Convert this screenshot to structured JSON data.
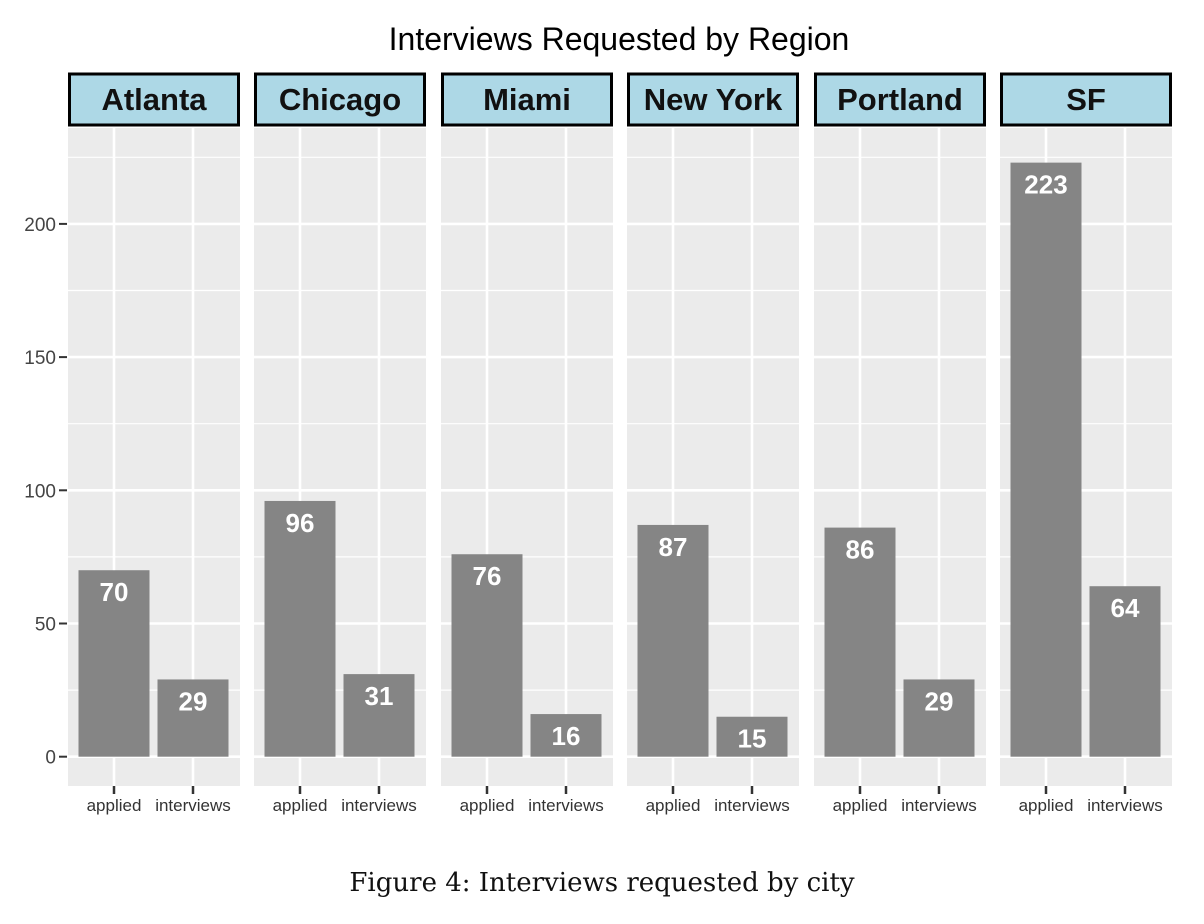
{
  "chart_data": {
    "type": "bar",
    "title": "Interviews Requested by Region",
    "facets": [
      "Atlanta",
      "Chicago",
      "Miami",
      "New York",
      "Portland",
      "SF"
    ],
    "categories": [
      "applied",
      "interviews"
    ],
    "values": [
      [
        70,
        29
      ],
      [
        96,
        31
      ],
      [
        76,
        16
      ],
      [
        87,
        15
      ],
      [
        86,
        29
      ],
      [
        223,
        64
      ]
    ],
    "y_ticks": [
      0,
      50,
      100,
      150,
      200
    ],
    "ylim": [
      -11,
      236
    ],
    "xlabel": "",
    "ylabel": "",
    "grid": true,
    "colors": {
      "panel_bg": "#EBEBEB",
      "grid": "#FFFFFF",
      "bar": "#858585",
      "strip_bg": "#ADD8E6",
      "strip_border": "#000000",
      "bar_label": "#FFFFFF"
    }
  },
  "caption": "Figure 4: Interviews requested by city"
}
